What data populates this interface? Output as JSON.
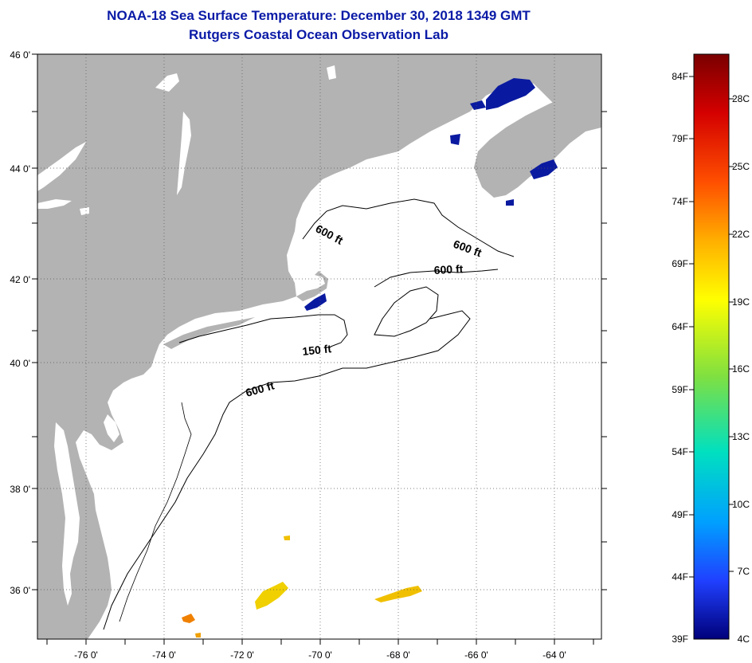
{
  "title": "NOAA-18 Sea Surface Temperature:  December 30, 2018 1349 GMT",
  "subtitle": "Rutgers Coastal Ocean Observation Lab",
  "lat_labels": [
    "46 0'",
    "44 0'",
    "42 0'",
    "40 0'",
    "38 0'",
    "36 0'"
  ],
  "lon_labels": [
    "-76 0'",
    "-74 0'",
    "-72 0'",
    "-70 0'",
    "-68 0'",
    "-66 0'",
    "-64 0'"
  ],
  "contour_labels": [
    "600 ft",
    "600 ft",
    "600 ft",
    "150 ft",
    "600 ft"
  ],
  "colorbar": {
    "fahrenheit_labels": [
      "84F",
      "79F",
      "74F",
      "69F",
      "64F",
      "59F",
      "54F",
      "49F",
      "44F",
      "39F"
    ],
    "celsius_labels": [
      "28C",
      "25C",
      "22C",
      "19C",
      "16C",
      "13C",
      "10C",
      "7C",
      "4C"
    ],
    "colors": [
      "#7a0000",
      "#d40000",
      "#ff5000",
      "#ffb000",
      "#ffff00",
      "#80e040",
      "#00e0c0",
      "#00a0ff",
      "#2040ff",
      "#00007a"
    ]
  },
  "colors": {
    "land": "#b3b3b3",
    "title": "#0a1aa6",
    "cold_sst": "#0a1aa0",
    "warm_sst": "#f0d000"
  }
}
